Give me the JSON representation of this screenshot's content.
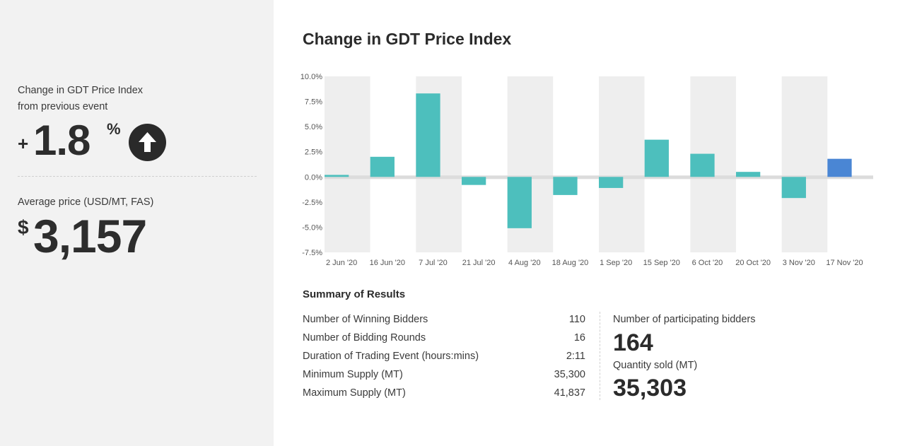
{
  "sidebar": {
    "change_label_line1": "Change in GDT Price Index",
    "change_label_line2": "from previous event",
    "change_sign": "+",
    "change_value": "1.8",
    "change_unit": "%",
    "change_direction_icon": "arrow-up-icon",
    "avg_price_label": "Average price (USD/MT, FAS)",
    "avg_price_currency": "$",
    "avg_price_value": "3,157"
  },
  "chart_data": {
    "type": "bar",
    "title": "Change in GDT Price Index",
    "xlabel": "",
    "ylabel": "",
    "categories": [
      "2 Jun '20",
      "16 Jun '20",
      "7 Jul '20",
      "21 Jul '20",
      "4 Aug '20",
      "18 Aug '20",
      "1 Sep '20",
      "15 Sep '20",
      "6 Oct '20",
      "20 Oct '20",
      "3 Nov '20",
      "17 Nov '20"
    ],
    "values": [
      0.2,
      2.0,
      8.3,
      -0.8,
      -5.1,
      -1.8,
      -1.1,
      3.7,
      2.3,
      0.5,
      -2.1,
      1.8
    ],
    "ylim": [
      -7.5,
      10.0
    ],
    "yticks": [
      "10.0%",
      "7.5%",
      "5.0%",
      "2.5%",
      "0.0%",
      "-2.5%",
      "-5.0%",
      "-7.5%"
    ],
    "ytick_values": [
      10.0,
      7.5,
      5.0,
      2.5,
      0.0,
      -2.5,
      -5.0,
      -7.5
    ],
    "bar_color": "#4dbfbd",
    "highlight_color": "#4a86d4",
    "highlight_index": 11,
    "grid": false
  },
  "summary": {
    "title": "Summary of Results",
    "rows": [
      {
        "label": "Number of Winning Bidders",
        "value": "110"
      },
      {
        "label": "Number of Bidding Rounds",
        "value": "16"
      },
      {
        "label": "Duration of Trading Event (hours:mins)",
        "value": "2:11"
      },
      {
        "label": "Minimum Supply (MT)",
        "value": "35,300"
      },
      {
        "label": "Maximum Supply (MT)",
        "value": "41,837"
      }
    ],
    "participating_label": "Number of participating bidders",
    "participating_value": "164",
    "quantity_label": "Quantity sold (MT)",
    "quantity_value": "35,303"
  }
}
